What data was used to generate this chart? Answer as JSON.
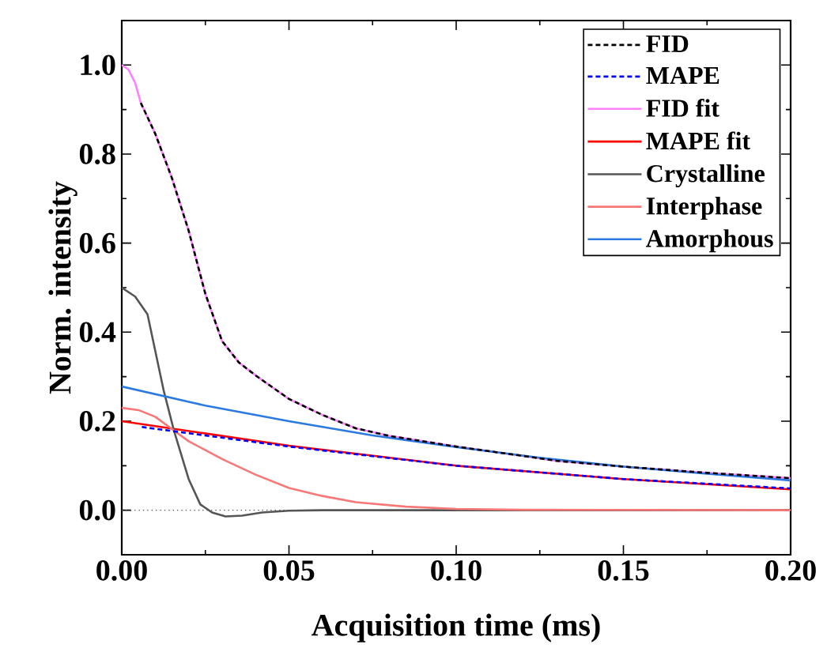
{
  "chart_data": {
    "type": "line",
    "xlabel": "Acquisition time (ms)",
    "ylabel": "Norm. intensity",
    "xlim": [
      0,
      0.2
    ],
    "ylim": [
      -0.1,
      1.1
    ],
    "xticks": [
      {
        "value": 0,
        "label": "0.00"
      },
      0.05,
      {
        "value": 0.1,
        "label": "0.10"
      },
      0.15,
      {
        "value": 0.2,
        "label": "0.20"
      }
    ],
    "yticks": [
      {
        "value": 0,
        "label": "0.0"
      },
      0.2,
      0.4,
      0.6,
      0.8,
      {
        "value": 1,
        "label": "1.0"
      }
    ],
    "legend": "top right",
    "grid": false,
    "marker": "none",
    "ref_lines": [
      {
        "axis": "y",
        "value": 0,
        "color": "#555555",
        "line_style": "dotted"
      }
    ],
    "series": [
      {
        "name": "FID",
        "color": "#000000",
        "line_style": "dashed",
        "x": [
          0.0057,
          0.01,
          0.015,
          0.02,
          0.025,
          0.03,
          0.035,
          0.04,
          0.05,
          0.06,
          0.07,
          0.08,
          0.09,
          0.1,
          0.12,
          0.13,
          0.15,
          0.175,
          0.2
        ],
        "values": [
          0.915,
          0.846,
          0.746,
          0.628,
          0.486,
          0.38,
          0.332,
          0.303,
          0.25,
          0.214,
          0.184,
          0.167,
          0.155,
          0.143,
          0.122,
          0.111,
          0.098,
          0.084,
          0.072
        ]
      },
      {
        "name": "MAPE",
        "color": "#0000ff",
        "line_style": "dashed",
        "x": [
          0.006,
          0.05,
          0.1,
          0.15,
          0.2
        ],
        "values": [
          0.187,
          0.143,
          0.1,
          0.07,
          0.049
        ]
      },
      {
        "name": "FID fit",
        "color": "#ff80ff",
        "line_style": "solid",
        "x": [
          0,
          0.002,
          0.004,
          0.0057,
          0.01,
          0.015,
          0.02,
          0.025,
          0.03,
          0.035,
          0.04,
          0.05,
          0.06,
          0.07,
          0.08,
          0.09,
          0.1,
          0.12,
          0.13,
          0.15,
          0.175,
          0.2
        ],
        "values": [
          1.0,
          0.99,
          0.96,
          0.915,
          0.846,
          0.746,
          0.628,
          0.486,
          0.38,
          0.332,
          0.303,
          0.25,
          0.214,
          0.184,
          0.167,
          0.155,
          0.143,
          0.122,
          0.111,
          0.098,
          0.084,
          0.072
        ]
      },
      {
        "name": "MAPE fit",
        "color": "#ff0000",
        "line_style": "solid",
        "x": [
          0,
          0.05,
          0.1,
          0.15,
          0.2
        ],
        "values": [
          0.2,
          0.145,
          0.1,
          0.07,
          0.047
        ]
      },
      {
        "name": "Crystalline",
        "color": "#555555",
        "line_style": "solid",
        "x": [
          0,
          0.004,
          0.0077,
          0.0125,
          0.0156,
          0.02,
          0.0235,
          0.027,
          0.031,
          0.036,
          0.042,
          0.05,
          0.06,
          0.2
        ],
        "values": [
          0.5,
          0.48,
          0.44,
          0.27,
          0.179,
          0.07,
          0.013,
          -0.005,
          -0.014,
          -0.012,
          -0.005,
          -0.001,
          0,
          0
        ]
      },
      {
        "name": "Interphase",
        "color": "#f87878",
        "line_style": "solid",
        "x": [
          0,
          0.005,
          0.01,
          0.0156,
          0.02,
          0.03,
          0.04,
          0.05,
          0.06,
          0.07,
          0.085,
          0.1,
          0.12,
          0.2
        ],
        "values": [
          0.23,
          0.225,
          0.21,
          0.179,
          0.155,
          0.115,
          0.08,
          0.05,
          0.032,
          0.018,
          0.008,
          0.003,
          0.001,
          0
        ]
      },
      {
        "name": "Amorphous",
        "color": "#2a7ae2",
        "line_style": "solid",
        "x": [
          0,
          0.025,
          0.05,
          0.075,
          0.1,
          0.125,
          0.15,
          0.175,
          0.2
        ],
        "values": [
          0.278,
          0.235,
          0.2,
          0.168,
          0.142,
          0.118,
          0.098,
          0.082,
          0.067
        ]
      }
    ]
  }
}
